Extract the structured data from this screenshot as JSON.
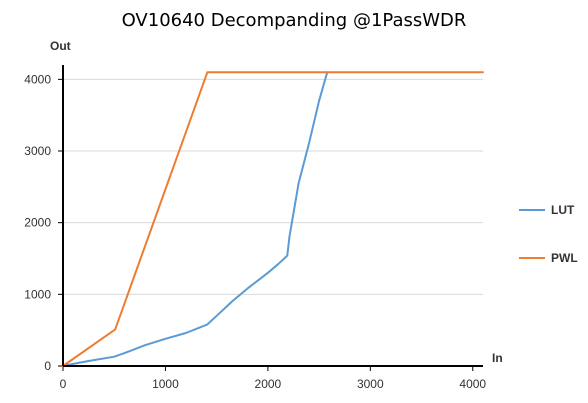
{
  "chart_data": {
    "type": "line",
    "title": "OV10640 Decompanding @1PassWDR",
    "xlabel": "In",
    "ylabel": "Out",
    "xlim": [
      0,
      4100
    ],
    "ylim": [
      0,
      4200
    ],
    "xticks": [
      0,
      1000,
      2000,
      3000,
      4000
    ],
    "yticks": [
      0,
      1000,
      2000,
      3000,
      4000
    ],
    "grid": "horizontal",
    "legend_position": "right",
    "series": [
      {
        "name": "LUT",
        "color": "#5b9bd5",
        "x": [
          0,
          100,
          250,
          500,
          600,
          800,
          1000,
          1200,
          1410,
          1500,
          1650,
          1800,
          2000,
          2100,
          2190,
          2210,
          2300,
          2400,
          2500,
          2560,
          2580
        ],
        "y": [
          0,
          30,
          70,
          130,
          180,
          290,
          380,
          460,
          580,
          700,
          900,
          1080,
          1300,
          1420,
          1540,
          1800,
          2550,
          3100,
          3700,
          4000,
          4100
        ]
      },
      {
        "name": "PWL",
        "color": "#ed7d31",
        "x": [
          0,
          510,
          1410,
          4100
        ],
        "y": [
          0,
          510,
          4100,
          4100
        ]
      }
    ]
  }
}
